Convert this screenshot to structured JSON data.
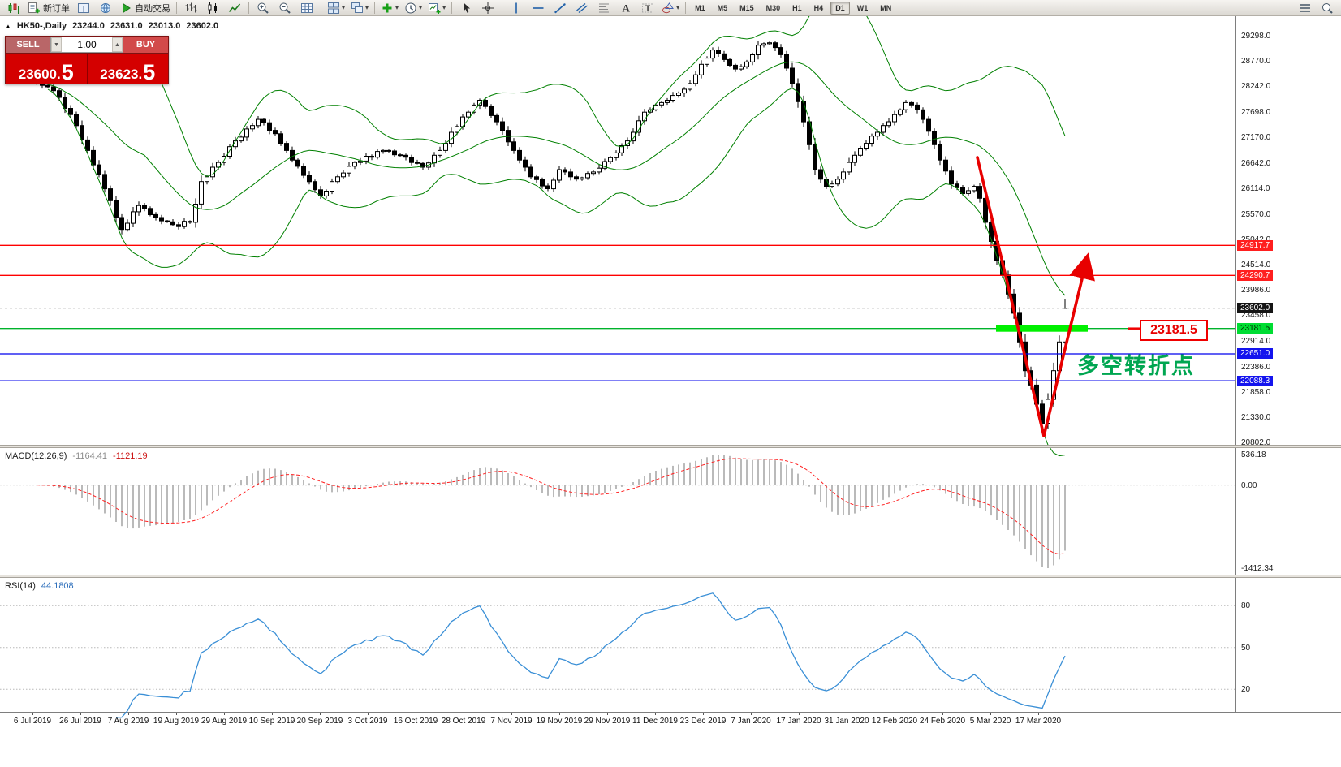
{
  "toolbar": {
    "items": [
      {
        "name": "new-chart-button",
        "icon": "chart-candle"
      },
      {
        "name": "new-order-button",
        "icon": "new-order",
        "label": "新订单"
      },
      {
        "name": "charts-profile-button",
        "icon": "profile"
      },
      {
        "name": "refresh-button",
        "icon": "refresh"
      },
      {
        "name": "auto-trading-button",
        "icon": "play",
        "label": "自动交易"
      },
      {
        "sep": true
      },
      {
        "name": "bar-chart-button",
        "icon": "bars"
      },
      {
        "name": "candlestick-chart-button",
        "icon": "candles"
      },
      {
        "name": "line-chart-button",
        "icon": "line-chart"
      },
      {
        "sep": true
      },
      {
        "name": "zoom-in-button",
        "icon": "zoom-in"
      },
      {
        "name": "zoom-out-button",
        "icon": "zoom-out"
      },
      {
        "name": "tile-windows-button",
        "icon": "grid"
      },
      {
        "sep": true
      },
      {
        "name": "arrange-windows-button",
        "icon": "tile",
        "dropdown": true
      },
      {
        "name": "cascade-windows-button",
        "icon": "cascade",
        "dropdown": true
      },
      {
        "sep": true
      },
      {
        "name": "add-indicator-button",
        "icon": "plus-green",
        "dropdown": true
      },
      {
        "name": "periods-button",
        "icon": "clock",
        "dropdown": true
      },
      {
        "name": "templates-button",
        "icon": "chart-plus",
        "dropdown": true
      },
      {
        "sep": true
      },
      {
        "name": "cursor-button",
        "icon": "cursor"
      },
      {
        "name": "crosshair-button",
        "icon": "crosshair"
      },
      {
        "sep": true
      },
      {
        "name": "vertical-line-button",
        "icon": "vline"
      },
      {
        "name": "horizontal-line-button",
        "icon": "hline"
      },
      {
        "name": "trendline-button",
        "icon": "trend"
      },
      {
        "name": "equidistant-channel-button",
        "icon": "channel"
      },
      {
        "name": "fibonacci-button",
        "icon": "fibo"
      },
      {
        "name": "text-button",
        "icon": "text-a"
      },
      {
        "name": "text-label-button",
        "icon": "text-t"
      },
      {
        "name": "shapes-button",
        "icon": "shapes",
        "dropdown": true
      },
      {
        "sep": true
      }
    ],
    "timeframes": [
      "M1",
      "M5",
      "M15",
      "M30",
      "H1",
      "H4",
      "D1",
      "W1",
      "MN"
    ],
    "active_timeframe": "D1",
    "right_items": [
      {
        "name": "indicator-list-button",
        "icon": "list"
      },
      {
        "name": "search-button",
        "icon": "search"
      }
    ]
  },
  "chart_header": {
    "collapse_icon": "▲",
    "symbol": "HK50-,Daily",
    "open": "23244.0",
    "high": "23631.0",
    "low": "23013.0",
    "close": "23602.0"
  },
  "trade_panel": {
    "sell_label": "SELL",
    "buy_label": "BUY",
    "volume": "1.00",
    "spin_up": "▲",
    "spin_down": "▼",
    "sell_int": "23600.",
    "sell_frac": "5",
    "buy_int": "23623.",
    "buy_frac": "5"
  },
  "price_axis": {
    "ticks": [
      "29298.0",
      "28770.0",
      "28242.0",
      "27698.0",
      "27170.0",
      "26642.0",
      "26114.0",
      "25570.0",
      "25042.0",
      "24514.0",
      "23986.0",
      "23458.0",
      "22914.0",
      "22386.0",
      "21858.0",
      "21330.0",
      "20802.0"
    ],
    "markers": [
      {
        "label": "24917.7",
        "type": "red"
      },
      {
        "label": "24290.7",
        "type": "red"
      },
      {
        "label": "23602.0",
        "type": "current"
      },
      {
        "label": "23181.5",
        "type": "green"
      },
      {
        "label": "22651.0",
        "type": "blue"
      },
      {
        "label": "22088.3",
        "type": "blue"
      }
    ]
  },
  "macd_panel": {
    "label": "MACD(12,26,9)",
    "main_value": "-1164.41",
    "signal_value": "-1121.19",
    "axis_labels": [
      "536.18",
      "0.00",
      "-1412.34"
    ]
  },
  "rsi_panel": {
    "label": "RSI(14)",
    "value": "44.1808",
    "levels": [
      "80",
      "50",
      "20"
    ]
  },
  "annotations": {
    "price_label": "23181.5",
    "turning_text": "多空转折点"
  },
  "time_axis": {
    "labels": [
      "6 Jul 2019",
      "26 Jul 2019",
      "7 Aug 2019",
      "19 Aug 2019",
      "29 Aug 2019",
      "10 Sep 2019",
      "20 Sep 2019",
      "3 Oct 2019",
      "16 Oct 2019",
      "28 Oct 2019",
      "7 Nov 2019",
      "19 Nov 2019",
      "29 Nov 2019",
      "11 Dec 2019",
      "23 Dec 2019",
      "7 Jan 2020",
      "17 Jan 2020",
      "31 Jan 2020",
      "12 Feb 2020",
      "24 Feb 2020",
      "5 Mar 2020",
      "17 Mar 2020"
    ]
  },
  "chart_data": {
    "type": "candlestick",
    "symbol": "HK50-",
    "timeframe": "Daily",
    "visible_ohlc": {
      "open": 23244.0,
      "high": 23631.0,
      "low": 23013.0,
      "close": 23602.0
    },
    "y_range": [
      20802.0,
      29298.0
    ],
    "closes": [
      28350,
      28260,
      28230,
      28150,
      28010,
      27780,
      27650,
      27420,
      27120,
      26900,
      26600,
      26400,
      26100,
      25850,
      25500,
      25250,
      25380,
      25620,
      25750,
      25690,
      25560,
      25500,
      25430,
      25410,
      25350,
      25310,
      25420,
      25400,
      25780,
      26250,
      26350,
      26550,
      26650,
      26780,
      26980,
      27100,
      27180,
      27350,
      27420,
      27550,
      27480,
      27320,
      27250,
      27050,
      26900,
      26700,
      26570,
      26380,
      26250,
      26080,
      25950,
      26050,
      26250,
      26350,
      26430,
      26570,
      26650,
      26680,
      26780,
      26760,
      26880,
      26900,
      26890,
      26810,
      26800,
      26760,
      26650,
      26630,
      26550,
      26640,
      26800,
      26900,
      27050,
      27280,
      27400,
      27600,
      27700,
      27850,
      27950,
      27820,
      27630,
      27500,
      27320,
      27080,
      26900,
      26700,
      26550,
      26350,
      26290,
      26160,
      26100,
      26280,
      26500,
      26450,
      26350,
      26300,
      26330,
      26420,
      26450,
      26530,
      26670,
      26750,
      26850,
      27000,
      27100,
      27280,
      27520,
      27700,
      27750,
      27850,
      27900,
      27950,
      28050,
      28100,
      28180,
      28300,
      28480,
      28700,
      28830,
      29000,
      28920,
      28800,
      28680,
      28600,
      28650,
      28750,
      28900,
      29100,
      29130,
      29150,
      29050,
      28900,
      28620,
      28300,
      27920,
      27500,
      27020,
      26500,
      26300,
      26150,
      26200,
      26300,
      26450,
      26650,
      26800,
      26950,
      27050,
      27200,
      27280,
      27420,
      27500,
      27650,
      27750,
      27900,
      27850,
      27750,
      27550,
      27300,
      27020,
      26700,
      26470,
      26200,
      26120,
      26000,
      26060,
      26150,
      25900,
      25400,
      25000,
      24600,
      24300,
      23900,
      23500,
      22900,
      22300,
      22000,
      21600,
      21200,
      21700,
      22300,
      22900,
      23602
    ],
    "indicators": {
      "bollinger": {
        "period": 20,
        "deviation": 2,
        "color": "#008000"
      },
      "macd": {
        "fast": 12,
        "slow": 26,
        "signal": 9,
        "main_value": -1164.41,
        "signal_value": -1121.19
      },
      "rsi": {
        "period": 14,
        "value": 44.1808,
        "levels": [
          80,
          50,
          20
        ]
      }
    },
    "horizontal_lines": [
      {
        "price": 24917.7,
        "color": "#ff0000"
      },
      {
        "price": 24290.7,
        "color": "#ff0000"
      },
      {
        "price": 23181.5,
        "color": "#00b32c"
      },
      {
        "price": 22651.0,
        "color": "#0000ee"
      },
      {
        "price": 22088.3,
        "color": "#0000ee"
      }
    ],
    "bid_price": 23602.0,
    "highlight_segment": {
      "price": 23181.5,
      "color": "#00f000"
    },
    "trend_annotation": "V-shaped red arrows marking crash low and projected rebound at 23181.5"
  }
}
